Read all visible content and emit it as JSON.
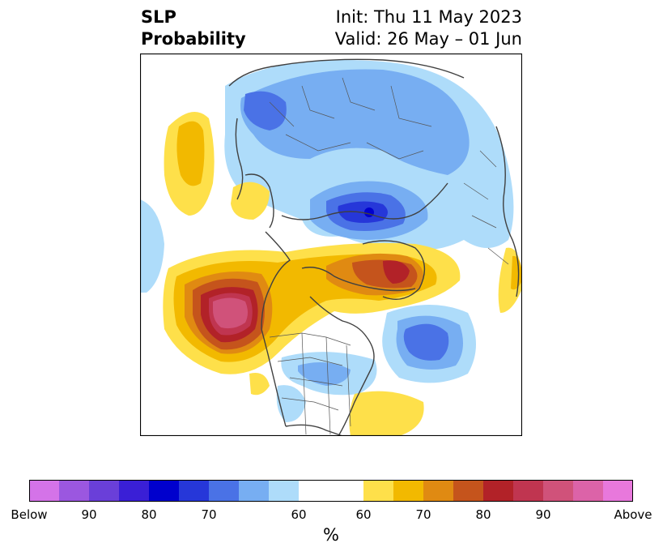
{
  "title": {
    "left_line1": "SLP",
    "left_line2": "Probability",
    "right_line1": "Init: Thu 11 May 2023",
    "right_line2": "Valid: 26 May – 01 Jun"
  },
  "map": {
    "projection": "polar stereographic (North America / Arctic)",
    "region": "North Pacific, North America, Arctic, North Atlantic",
    "features": {
      "below_centers": [
        "Siberia / East Asia",
        "Arctic Ocean north of Scandinavia",
        "North Atlantic",
        "Central United States"
      ],
      "above_centers": [
        "Gulf of Alaska (NE Pacific)",
        "Greenland / Canadian Arctic",
        "Western North Pacific",
        "Southeast of United States"
      ]
    }
  },
  "colorbar": {
    "label": "%",
    "tick_labels": [
      "Below",
      "90",
      "80",
      "70",
      "60",
      "60",
      "70",
      "80",
      "90",
      "Above"
    ],
    "below_colors": [
      "#d473e8",
      "#9b57e0",
      "#6a3fd9",
      "#3a1fd6",
      "#0000cd",
      "#2637d9",
      "#4a72e6",
      "#77aef2",
      "#aedcfa"
    ],
    "neutral_color": "#ffffff",
    "above_colors": [
      "#fee04a",
      "#f2b900",
      "#e08a12",
      "#c5541c",
      "#b22228",
      "#c03550",
      "#d0527a",
      "#dc63a8",
      "#e878dc"
    ]
  }
}
